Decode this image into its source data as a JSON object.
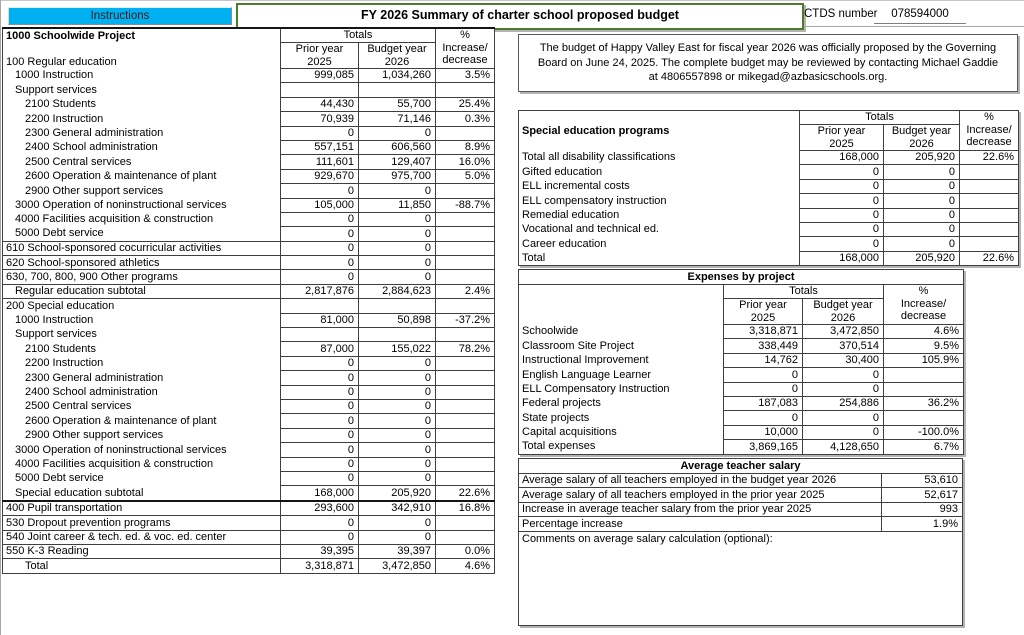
{
  "header": {
    "instructions_label": "Instructions",
    "title": "FY 2026 Summary of charter school proposed budget",
    "ctds_label": "CTDS number",
    "ctds_value": "078594000"
  },
  "columns": {
    "totals": "Totals",
    "pct": "%",
    "increase": "Increase/",
    "decrease": "decrease",
    "prior_year": "Prior year",
    "budget_year": "Budget year",
    "year_prior": "2025",
    "year_budget": "2026"
  },
  "proposal_note": "The budget of Happy Valley East for fiscal year 2026 was officially proposed by the Governing Board on June 24, 2025. The complete budget may be reviewed by contacting Michael Gaddie at 4806557898 or mikegad@azbasicschools.org.",
  "schoolwide": {
    "title": "1000 Schoolwide Project",
    "first_row_label": "100 Regular education",
    "rows": [
      {
        "label": "1000 Instruction",
        "ind": 1,
        "prior": "999,085",
        "budget": "1,034,260",
        "pct": "3.5%"
      },
      {
        "label": "Support services",
        "ind": 1,
        "prior": null,
        "budget": null,
        "pct": null
      },
      {
        "label": "2100 Students",
        "ind": 2,
        "prior": "44,430",
        "budget": "55,700",
        "pct": "25.4%"
      },
      {
        "label": "2200 Instruction",
        "ind": 2,
        "prior": "70,939",
        "budget": "71,146",
        "pct": "0.3%"
      },
      {
        "label": "2300 General administration",
        "ind": 2,
        "prior": "0",
        "budget": "0",
        "pct": ""
      },
      {
        "label": "2400 School administration",
        "ind": 2,
        "prior": "557,151",
        "budget": "606,560",
        "pct": "8.9%"
      },
      {
        "label": "2500 Central services",
        "ind": 2,
        "prior": "111,601",
        "budget": "129,407",
        "pct": "16.0%"
      },
      {
        "label": "2600 Operation & maintenance of plant",
        "ind": 2,
        "prior": "929,670",
        "budget": "975,700",
        "pct": "5.0%"
      },
      {
        "label": "2900 Other support services",
        "ind": 2,
        "prior": "0",
        "budget": "0",
        "pct": ""
      },
      {
        "label": "3000 Operation of noninstructional services",
        "ind": 1,
        "prior": "105,000",
        "budget": "11,850",
        "pct": "-88.7%"
      },
      {
        "label": "4000 Facilities acquisition & construction",
        "ind": 1,
        "prior": "0",
        "budget": "0",
        "pct": ""
      },
      {
        "label": "5000 Debt service",
        "ind": 1,
        "prior": "0",
        "budget": "0",
        "pct": ""
      },
      {
        "label": "610 School-sponsored cocurricular activities",
        "ind": 0,
        "prior": "0",
        "budget": "0",
        "pct": "",
        "sep": true
      },
      {
        "label": "620 School-sponsored athletics",
        "ind": 0,
        "prior": "0",
        "budget": "0",
        "pct": "",
        "sep": true
      },
      {
        "label": "630, 700, 800, 900 Other programs",
        "ind": 0,
        "prior": "0",
        "budget": "0",
        "pct": "",
        "sep": true
      },
      {
        "label": "Regular education subtotal",
        "ind": 1,
        "prior": "2,817,876",
        "budget": "2,884,623",
        "pct": "2.4%",
        "sep": true
      },
      {
        "label": "200 Special education",
        "ind": 0,
        "prior": null,
        "budget": null,
        "pct": null,
        "sep": true
      },
      {
        "label": "1000 Instruction",
        "ind": 1,
        "prior": "81,000",
        "budget": "50,898",
        "pct": "-37.2%"
      },
      {
        "label": "Support services",
        "ind": 1,
        "prior": null,
        "budget": null,
        "pct": null
      },
      {
        "label": "2100 Students",
        "ind": 2,
        "prior": "87,000",
        "budget": "155,022",
        "pct": "78.2%"
      },
      {
        "label": "2200 Instruction",
        "ind": 2,
        "prior": "0",
        "budget": "0",
        "pct": ""
      },
      {
        "label": "2300 General administration",
        "ind": 2,
        "prior": "0",
        "budget": "0",
        "pct": ""
      },
      {
        "label": "2400 School administration",
        "ind": 2,
        "prior": "0",
        "budget": "0",
        "pct": ""
      },
      {
        "label": "2500 Central services",
        "ind": 2,
        "prior": "0",
        "budget": "0",
        "pct": ""
      },
      {
        "label": "2600 Operation & maintenance of plant",
        "ind": 2,
        "prior": "0",
        "budget": "0",
        "pct": ""
      },
      {
        "label": "2900 Other support services",
        "ind": 2,
        "prior": "0",
        "budget": "0",
        "pct": ""
      },
      {
        "label": "3000 Operation of noninstructional services",
        "ind": 1,
        "prior": "0",
        "budget": "0",
        "pct": ""
      },
      {
        "label": "4000 Facilities acquisition & construction",
        "ind": 1,
        "prior": "0",
        "budget": "0",
        "pct": ""
      },
      {
        "label": "5000 Debt service",
        "ind": 1,
        "prior": "0",
        "budget": "0",
        "pct": ""
      },
      {
        "label": "Special education subtotal",
        "ind": 1,
        "prior": "168,000",
        "budget": "205,920",
        "pct": "22.6%"
      },
      {
        "label": "400 Pupil transportation",
        "ind": 0,
        "prior": "293,600",
        "budget": "342,910",
        "pct": "16.8%",
        "sep": true,
        "thick": true
      },
      {
        "label": "530 Dropout prevention programs",
        "ind": 0,
        "prior": "0",
        "budget": "0",
        "pct": "",
        "sep": true
      },
      {
        "label": "540 Joint career & tech. ed. & voc. ed. center",
        "ind": 0,
        "prior": "0",
        "budget": "0",
        "pct": "",
        "sep": true
      },
      {
        "label": "550 K-3 Reading",
        "ind": 0,
        "prior": "39,395",
        "budget": "39,397",
        "pct": "0.0%",
        "sep": true
      },
      {
        "label": "Total",
        "ind": 2,
        "prior": "3,318,871",
        "budget": "3,472,850",
        "pct": "4.6%",
        "sep": true
      }
    ]
  },
  "special_ed": {
    "title": "Special education programs",
    "rows": [
      {
        "label": "Total all disability classifications",
        "prior": "168,000",
        "budget": "205,920",
        "pct": "22.6%"
      },
      {
        "label": "Gifted education",
        "prior": "0",
        "budget": "0",
        "pct": ""
      },
      {
        "label": "ELL incremental costs",
        "prior": "0",
        "budget": "0",
        "pct": ""
      },
      {
        "label": "ELL compensatory instruction",
        "prior": "0",
        "budget": "0",
        "pct": ""
      },
      {
        "label": "Remedial education",
        "prior": "0",
        "budget": "0",
        "pct": ""
      },
      {
        "label": "Vocational and technical ed.",
        "prior": "0",
        "budget": "0",
        "pct": ""
      },
      {
        "label": "Career education",
        "prior": "0",
        "budget": "0",
        "pct": ""
      },
      {
        "label": "Total",
        "prior": "168,000",
        "budget": "205,920",
        "pct": "22.6%"
      }
    ]
  },
  "expenses": {
    "title": "Expenses by project",
    "rows": [
      {
        "label": "Schoolwide",
        "prior": "3,318,871",
        "budget": "3,472,850",
        "pct": "4.6%"
      },
      {
        "label": "Classroom Site Project",
        "prior": "338,449",
        "budget": "370,514",
        "pct": "9.5%"
      },
      {
        "label": "Instructional Improvement",
        "prior": "14,762",
        "budget": "30,400",
        "pct": "105.9%"
      },
      {
        "label": "English Language Learner",
        "prior": "0",
        "budget": "0",
        "pct": ""
      },
      {
        "label": "ELL Compensatory Instruction",
        "prior": "0",
        "budget": "0",
        "pct": ""
      },
      {
        "label": "Federal projects",
        "prior": "187,083",
        "budget": "254,886",
        "pct": "36.2%"
      },
      {
        "label": "State projects",
        "prior": "0",
        "budget": "0",
        "pct": ""
      },
      {
        "label": "Capital acquisitions",
        "prior": "10,000",
        "budget": "0",
        "pct": "-100.0%"
      },
      {
        "label": "Total expenses",
        "prior": "3,869,165",
        "budget": "4,128,650",
        "pct": "6.7%"
      }
    ]
  },
  "salary": {
    "title": "Average teacher salary",
    "rows": [
      {
        "label": "Average salary of all teachers employed in the budget year 2026",
        "value": "53,610"
      },
      {
        "label": "Average salary of all teachers employed in the prior year 2025",
        "value": "52,617"
      },
      {
        "label": "Increase in average teacher salary from the prior year 2025",
        "value": "993"
      },
      {
        "label": "Percentage increase",
        "value": "1.9%"
      }
    ],
    "comments_label": "Comments on average salary calculation (optional):"
  }
}
